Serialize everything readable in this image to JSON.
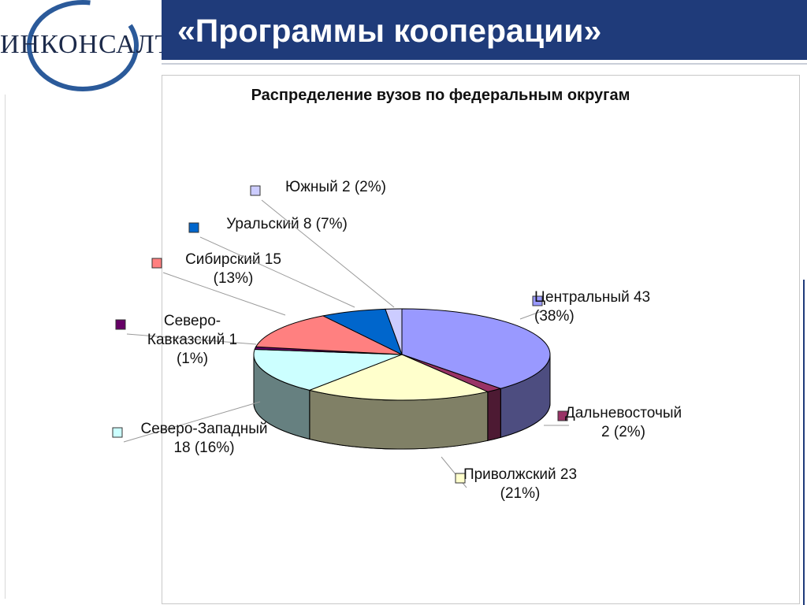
{
  "header": {
    "title": "«Программы кооперации»",
    "logo_text": "ИНКОНСАЛТ К",
    "bar_color": "#1f3b7a"
  },
  "chart_data": {
    "type": "pie",
    "style": "3d",
    "title": "Распределение вузов по федеральным округам",
    "unit": "",
    "series": [
      {
        "values": [
          43,
          2,
          23,
          18,
          1,
          15,
          8,
          2
        ],
        "percents": [
          "38%",
          "2%",
          "21%",
          "16%",
          "1%",
          "13%",
          "7%",
          "2%"
        ]
      }
    ],
    "categories": [
      "Центральный",
      "Дальневосточый",
      "Приволжский",
      "Северо-Западный",
      "Северо-Кавказский",
      "Сибирский",
      "Уральский",
      "Южный"
    ],
    "colors": [
      "#9999ff",
      "#993366",
      "#ffffcc",
      "#ccffff",
      "#660066",
      "#ff8080",
      "#0066cc",
      "#ccccff"
    ],
    "legend": "none",
    "labels": [
      {
        "lines": [
          "Центральный  43",
          "(38%)"
        ]
      },
      {
        "lines": [
          "Дальневосточый",
          "2 (2%)"
        ]
      },
      {
        "lines": [
          "Приволжский  23",
          "(21%)"
        ]
      },
      {
        "lines": [
          "Северо-Западный",
          "18 (16%)"
        ]
      },
      {
        "lines": [
          "Северо-",
          "Кавказский  1",
          "(1%)"
        ]
      },
      {
        "lines": [
          "Сибирский  15",
          "(13%)"
        ]
      },
      {
        "lines": [
          "Уральский  8 (7%)"
        ]
      },
      {
        "lines": [
          "Южный  2 (2%)"
        ]
      }
    ]
  }
}
